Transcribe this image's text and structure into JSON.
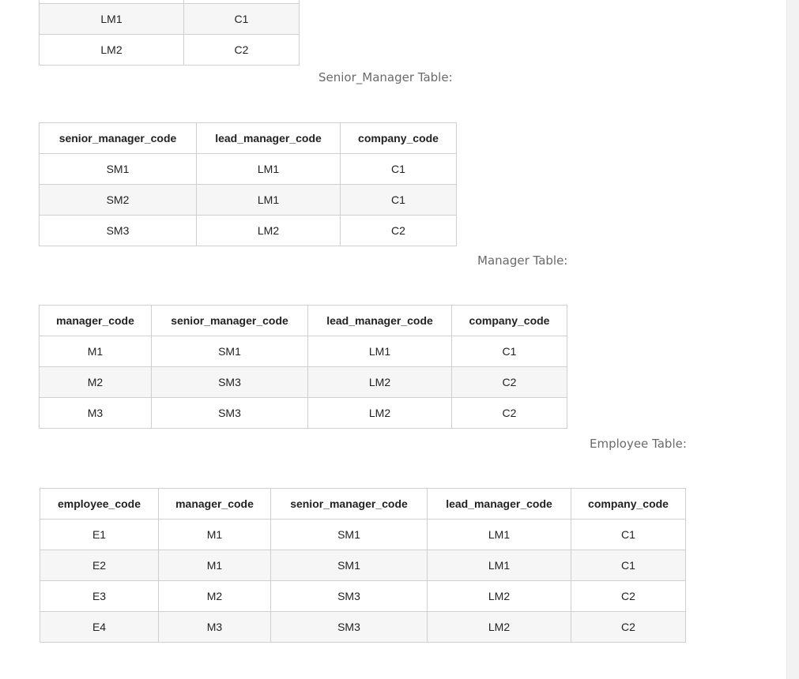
{
  "lead_manager_partial": {
    "rows": [
      [
        "LM1",
        "C1"
      ],
      [
        "LM2",
        "C2"
      ]
    ]
  },
  "senior_manager": {
    "caption": "Senior_Manager Table:",
    "headers": [
      "senior_manager_code",
      "lead_manager_code",
      "company_code"
    ],
    "rows": [
      [
        "SM1",
        "LM1",
        "C1"
      ],
      [
        "SM2",
        "LM1",
        "C1"
      ],
      [
        "SM3",
        "LM2",
        "C2"
      ]
    ]
  },
  "manager": {
    "caption": "Manager Table:",
    "headers": [
      "manager_code",
      "senior_manager_code",
      "lead_manager_code",
      "company_code"
    ],
    "rows": [
      [
        "M1",
        "SM1",
        "LM1",
        "C1"
      ],
      [
        "M2",
        "SM3",
        "LM2",
        "C2"
      ],
      [
        "M3",
        "SM3",
        "LM2",
        "C2"
      ]
    ]
  },
  "employee": {
    "caption": "Employee Table:",
    "headers": [
      "employee_code",
      "manager_code",
      "senior_manager_code",
      "lead_manager_code",
      "company_code"
    ],
    "rows": [
      [
        "E1",
        "M1",
        "SM1",
        "LM1",
        "C1"
      ],
      [
        "E2",
        "M1",
        "SM1",
        "LM1",
        "C1"
      ],
      [
        "E3",
        "M2",
        "SM3",
        "LM2",
        "C2"
      ],
      [
        "E4",
        "M3",
        "SM3",
        "LM2",
        "C2"
      ]
    ]
  }
}
